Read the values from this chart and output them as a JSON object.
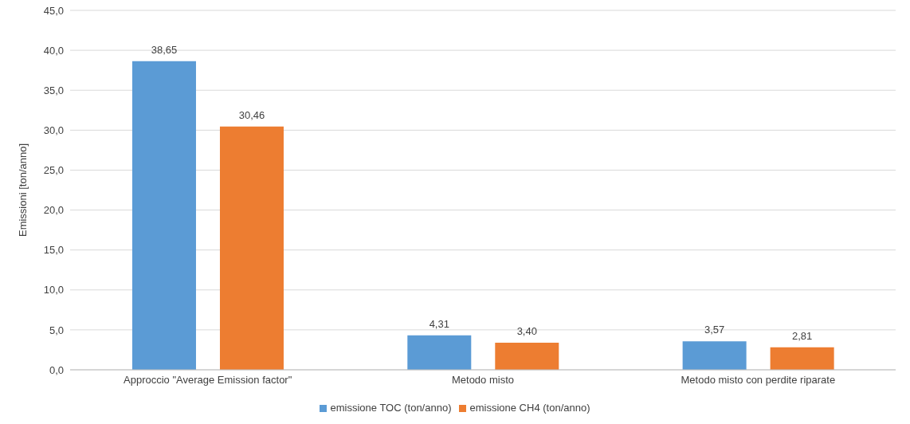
{
  "chart_data": {
    "type": "bar",
    "ylabel": "Emissioni [ton/anno]",
    "categories": [
      "Approccio \"Average Emission factor\"",
      "Metodo misto",
      "Metodo misto con perdite riparate"
    ],
    "series": [
      {
        "name": "emissione TOC (ton/anno)",
        "color": "#5b9bd5",
        "values": [
          38.65,
          4.31,
          3.57
        ],
        "value_labels": [
          "38,65",
          "4,31",
          "3,57"
        ]
      },
      {
        "name": "emissione CH4 (ton/anno)",
        "color": "#ed7d31",
        "values": [
          30.46,
          3.4,
          2.81
        ],
        "value_labels": [
          "30,46",
          "3,40",
          "2,81"
        ]
      }
    ],
    "ylim": [
      0,
      45
    ],
    "yticks": [
      {
        "value": 0,
        "label": "0,0"
      },
      {
        "value": 5,
        "label": "5,0"
      },
      {
        "value": 10,
        "label": "10,0"
      },
      {
        "value": 15,
        "label": "15,0"
      },
      {
        "value": 20,
        "label": "20,0"
      },
      {
        "value": 25,
        "label": "25,0"
      },
      {
        "value": 30,
        "label": "30,0"
      },
      {
        "value": 35,
        "label": "35,0"
      },
      {
        "value": 40,
        "label": "40,0"
      },
      {
        "value": 45,
        "label": "45,0"
      }
    ],
    "grid": "y",
    "legend": "bottom"
  }
}
